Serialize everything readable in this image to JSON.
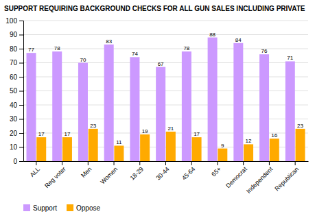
{
  "chart_data": {
    "type": "bar",
    "title": "SUPPORT REQUIRING BACKGROUND CHECKS FOR ALL GUN SALES INCLUDING PRIVATE",
    "categories": [
      "ALL",
      "Reg voter",
      "Men",
      "Women",
      "18-29",
      "30-44",
      "45-64",
      "65+",
      "Democrat",
      "Independent",
      "Republican"
    ],
    "series": [
      {
        "name": "Support",
        "color": "#cc99ff",
        "values": [
          77,
          78,
          70,
          83,
          74,
          67,
          78,
          88,
          84,
          76,
          71
        ]
      },
      {
        "name": "Oppose",
        "color": "#ffaa00",
        "values": [
          17,
          17,
          23,
          11,
          19,
          21,
          17,
          9,
          12,
          16,
          23
        ]
      }
    ],
    "ylim": [
      0,
      100
    ],
    "yticks": [
      0,
      10,
      20,
      30,
      40,
      50,
      60,
      70,
      80,
      90,
      100
    ],
    "grid": true,
    "legend": "bottom",
    "data_labels": true
  }
}
